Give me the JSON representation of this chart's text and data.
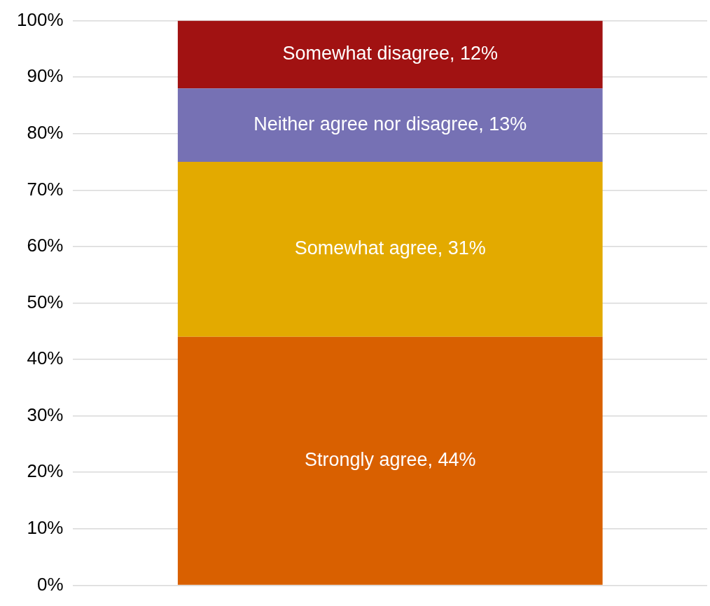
{
  "chart_data": {
    "type": "bar",
    "stacked": true,
    "categories": [
      null
    ],
    "series": [
      {
        "color": "#d96000",
        "values": [
          44
        ],
        "value_labels": [
          "Strongly agree, 44%"
        ]
      },
      {
        "color": "#e3aa00",
        "values": [
          31
        ],
        "value_labels": [
          "Somewhat agree, 31%"
        ]
      },
      {
        "color": "#7671b4",
        "values": [
          13
        ],
        "value_labels": [
          "Neither agree nor disagree, 13%"
        ]
      },
      {
        "color": "#a11212",
        "values": [
          12
        ],
        "value_labels": [
          "Somewhat disagree, 12%"
        ]
      }
    ],
    "ylim": [
      0,
      100
    ],
    "yticks": [
      {
        "value": 0,
        "label": "0%"
      },
      {
        "value": 10,
        "label": "10%"
      },
      {
        "value": 20,
        "label": "20%"
      },
      {
        "value": 30,
        "label": "30%"
      },
      {
        "value": 40,
        "label": "40%"
      },
      {
        "value": 50,
        "label": "50%"
      },
      {
        "value": 60,
        "label": "60%"
      },
      {
        "value": 70,
        "label": "70%"
      },
      {
        "value": 80,
        "label": "80%"
      },
      {
        "value": 90,
        "label": "90%"
      },
      {
        "value": 100,
        "label": "100%"
      }
    ],
    "grid": "y",
    "legend": false,
    "tick_labels": "y"
  }
}
